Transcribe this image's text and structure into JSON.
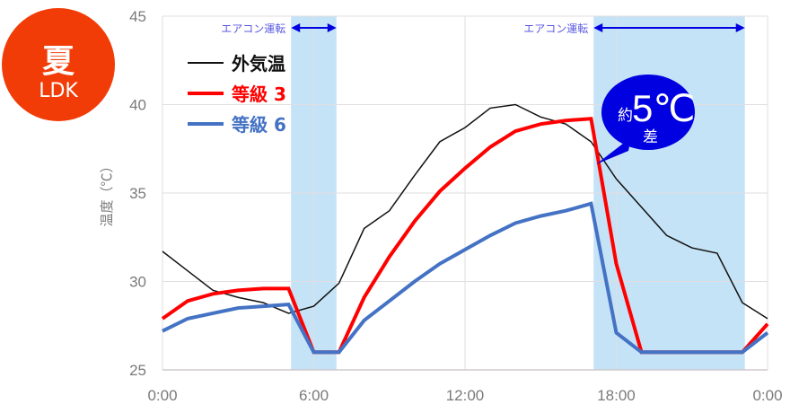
{
  "badge": {
    "season": "夏",
    "room": "LDK",
    "color": "#f23c07"
  },
  "chart_data": {
    "type": "line",
    "title": "",
    "xlabel": "",
    "ylabel": "温度（℃）",
    "xlim": [
      0,
      24
    ],
    "ylim": [
      25,
      45
    ],
    "x_ticks": [
      0,
      6,
      12,
      18,
      24
    ],
    "x_tick_labels": [
      "0:00",
      "6:00",
      "12:00",
      "18:00",
      "0:00"
    ],
    "y_ticks": [
      25,
      30,
      35,
      40,
      45
    ],
    "y_tick_labels": [
      "25",
      "30",
      "35",
      "40",
      "45"
    ],
    "grid": true,
    "legend_position": "top-left",
    "x": [
      0,
      1,
      2,
      3,
      4,
      5,
      6,
      7,
      8,
      9,
      10,
      11,
      12,
      13,
      14,
      15,
      16,
      17,
      18,
      19,
      20,
      21,
      22,
      23,
      24
    ],
    "series": [
      {
        "name": "外気温",
        "color": "#111111",
        "width": 1.5,
        "values": [
          31.7,
          30.6,
          29.5,
          29.1,
          28.8,
          28.2,
          28.6,
          29.9,
          33.0,
          34.0,
          36.0,
          37.9,
          38.7,
          39.8,
          40.0,
          39.3,
          38.9,
          37.9,
          35.8,
          34.2,
          32.6,
          31.9,
          31.6,
          28.8,
          27.9
        ]
      },
      {
        "name": "等級 3",
        "color": "#ff0000",
        "width": 4,
        "values": [
          27.9,
          28.9,
          29.3,
          29.5,
          29.6,
          29.6,
          26.0,
          26.0,
          29.1,
          31.4,
          33.4,
          35.1,
          36.4,
          37.6,
          38.5,
          38.9,
          39.1,
          39.2,
          31.0,
          26.0,
          26.0,
          26.0,
          26.0,
          26.0,
          27.6
        ]
      },
      {
        "name": "等級 6",
        "color": "#4472c4",
        "width": 4,
        "values": [
          27.2,
          27.9,
          28.2,
          28.5,
          28.6,
          28.7,
          26.0,
          26.0,
          27.8,
          28.9,
          30.0,
          31.0,
          31.8,
          32.6,
          33.3,
          33.7,
          34.0,
          34.4,
          27.1,
          26.0,
          26.0,
          26.0,
          26.0,
          26.0,
          27.1
        ]
      }
    ],
    "shaded_periods": [
      {
        "label": "エアコン運転",
        "start": 5.1,
        "end": 6.9
      },
      {
        "label": "エアコン運転",
        "start": 17.1,
        "end": 23.1
      }
    ],
    "shade_color": "#c5e3f6",
    "annotation": {
      "prefix": "約",
      "value": "5℃",
      "suffix": "差",
      "color": "#0000e0"
    }
  }
}
